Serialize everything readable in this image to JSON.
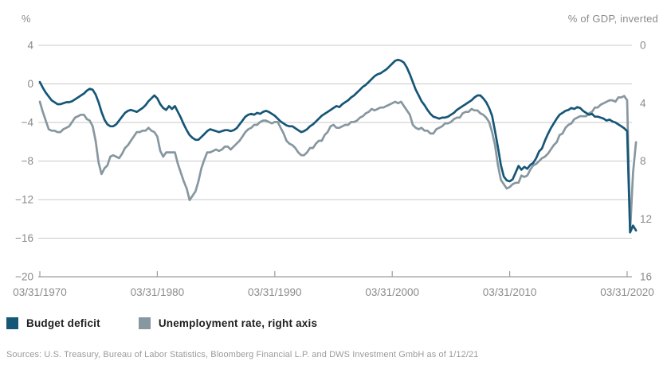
{
  "header": {
    "left_axis_unit": "%",
    "right_axis_unit": "% of GDP, inverted"
  },
  "legend": {
    "items": [
      {
        "label": "Budget deficit",
        "color": "#165677"
      },
      {
        "label": "Unemployment rate, right axis",
        "color": "#8797a0"
      }
    ]
  },
  "footer": {
    "sources": "Sources: U.S. Treasury, Bureau of Labor Statistics, Bloomberg Financial L.P. and DWS Investment GmbH as of 1/12/21"
  },
  "chart_data": {
    "type": "line",
    "title": "",
    "grid": true,
    "x_axis": {
      "frequency": "quarterly",
      "start": "1970-Q1",
      "end": "2020-Q4",
      "tick_labels": [
        "03/31/1970",
        "03/31/1980",
        "03/31/1990",
        "03/31/2000",
        "03/31/2010",
        "03/31/2020"
      ]
    },
    "left_axis": {
      "unit": "%",
      "range": [
        -20,
        4
      ],
      "ticks": [
        {
          "label": "4",
          "value": 4
        },
        {
          "label": "0",
          "value": 0
        },
        {
          "label": "−4",
          "value": -4
        },
        {
          "label": "−8",
          "value": -8
        },
        {
          "label": "−12",
          "value": -12
        },
        {
          "label": "−16",
          "value": -16
        },
        {
          "label": "−20",
          "value": -20
        }
      ]
    },
    "right_axis": {
      "unit": "% of GDP, inverted",
      "inverted": true,
      "range": [
        0,
        16
      ],
      "ticks": [
        {
          "label": "0",
          "value": 0
        },
        {
          "label": "4",
          "value": 4
        },
        {
          "label": "8",
          "value": 8
        },
        {
          "label": "12",
          "value": 12
        },
        {
          "label": "16",
          "value": 16
        }
      ]
    },
    "series": [
      {
        "name": "Budget deficit",
        "axis": "left",
        "color": "#165677",
        "start_year": 1970,
        "frequency": "quarterly",
        "values": [
          0.2,
          -0.4,
          -0.9,
          -1.3,
          -1.7,
          -1.9,
          -2.1,
          -2.1,
          -2.0,
          -1.9,
          -1.9,
          -1.8,
          -1.6,
          -1.4,
          -1.2,
          -1.0,
          -0.7,
          -0.5,
          -0.6,
          -1.1,
          -1.9,
          -2.9,
          -3.7,
          -4.2,
          -4.4,
          -4.4,
          -4.2,
          -3.8,
          -3.4,
          -3.0,
          -2.8,
          -2.7,
          -2.8,
          -2.9,
          -2.7,
          -2.5,
          -2.2,
          -1.8,
          -1.5,
          -1.2,
          -1.5,
          -2.1,
          -2.5,
          -2.7,
          -2.3,
          -2.6,
          -2.3,
          -2.9,
          -3.5,
          -4.2,
          -4.8,
          -5.3,
          -5.6,
          -5.8,
          -5.8,
          -5.5,
          -5.2,
          -4.9,
          -4.7,
          -4.8,
          -4.9,
          -5.0,
          -4.9,
          -4.8,
          -4.8,
          -4.9,
          -4.8,
          -4.6,
          -4.2,
          -3.8,
          -3.4,
          -3.2,
          -3.1,
          -3.2,
          -3.0,
          -3.1,
          -2.9,
          -2.8,
          -2.9,
          -3.1,
          -3.3,
          -3.6,
          -3.9,
          -4.1,
          -4.3,
          -4.4,
          -4.4,
          -4.6,
          -4.8,
          -5.0,
          -4.9,
          -4.7,
          -4.4,
          -4.2,
          -3.9,
          -3.6,
          -3.3,
          -3.1,
          -2.9,
          -2.7,
          -2.5,
          -2.3,
          -2.4,
          -2.1,
          -1.9,
          -1.7,
          -1.4,
          -1.2,
          -0.9,
          -0.6,
          -0.3,
          -0.1,
          0.2,
          0.5,
          0.8,
          1.0,
          1.1,
          1.3,
          1.5,
          1.8,
          2.1,
          2.4,
          2.5,
          2.4,
          2.2,
          1.7,
          1.0,
          0.2,
          -0.6,
          -1.2,
          -1.8,
          -2.2,
          -2.7,
          -3.1,
          -3.4,
          -3.5,
          -3.6,
          -3.5,
          -3.5,
          -3.4,
          -3.2,
          -3.0,
          -2.7,
          -2.5,
          -2.3,
          -2.1,
          -1.9,
          -1.7,
          -1.4,
          -1.2,
          -1.2,
          -1.5,
          -1.9,
          -2.5,
          -3.3,
          -4.9,
          -6.6,
          -8.4,
          -9.6,
          -10.0,
          -10.1,
          -9.9,
          -9.2,
          -8.5,
          -8.9,
          -8.6,
          -8.8,
          -8.4,
          -8.2,
          -7.7,
          -7.0,
          -6.7,
          -5.9,
          -5.2,
          -4.6,
          -4.1,
          -3.6,
          -3.2,
          -3.0,
          -2.8,
          -2.7,
          -2.5,
          -2.6,
          -2.4,
          -2.5,
          -2.8,
          -3.0,
          -3.2,
          -3.1,
          -3.4,
          -3.4,
          -3.5,
          -3.6,
          -3.8,
          -3.7,
          -3.9,
          -4.0,
          -4.2,
          -4.4,
          -4.6,
          -4.9,
          -15.4,
          -14.7,
          -15.2
        ]
      },
      {
        "name": "Unemployment rate, right axis",
        "axis": "right",
        "color": "#8797a0",
        "start_year": 1970,
        "frequency": "quarterly",
        "values": [
          3.9,
          4.6,
          5.2,
          5.8,
          5.9,
          5.9,
          6.0,
          6.0,
          5.8,
          5.7,
          5.6,
          5.3,
          5.0,
          4.9,
          4.8,
          4.8,
          5.1,
          5.2,
          5.6,
          6.6,
          8.1,
          8.9,
          8.5,
          8.3,
          7.7,
          7.6,
          7.7,
          7.8,
          7.5,
          7.1,
          6.9,
          6.6,
          6.3,
          6.0,
          6.0,
          5.9,
          5.9,
          5.7,
          5.9,
          6.0,
          6.3,
          7.3,
          7.7,
          7.4,
          7.4,
          7.4,
          7.4,
          8.2,
          8.8,
          9.4,
          9.9,
          10.7,
          10.4,
          10.1,
          9.4,
          8.5,
          7.9,
          7.4,
          7.4,
          7.3,
          7.2,
          7.3,
          7.2,
          7.0,
          7.0,
          7.2,
          7.0,
          6.8,
          6.6,
          6.3,
          6.0,
          5.8,
          5.7,
          5.5,
          5.5,
          5.3,
          5.2,
          5.2,
          5.3,
          5.4,
          5.3,
          5.3,
          5.7,
          6.1,
          6.6,
          6.8,
          6.9,
          7.1,
          7.4,
          7.6,
          7.6,
          7.4,
          7.1,
          7.1,
          6.8,
          6.6,
          6.6,
          6.2,
          6.0,
          5.6,
          5.5,
          5.7,
          5.7,
          5.6,
          5.5,
          5.5,
          5.3,
          5.3,
          5.2,
          5.0,
          4.9,
          4.7,
          4.6,
          4.4,
          4.5,
          4.4,
          4.3,
          4.3,
          4.2,
          4.1,
          4.0,
          3.9,
          4.0,
          3.9,
          4.2,
          4.5,
          4.8,
          5.5,
          5.7,
          5.8,
          5.7,
          5.9,
          5.9,
          6.1,
          6.1,
          5.8,
          5.7,
          5.6,
          5.4,
          5.4,
          5.3,
          5.1,
          5.0,
          5.0,
          4.7,
          4.6,
          4.6,
          4.4,
          4.5,
          4.5,
          4.7,
          4.8,
          5.0,
          5.3,
          6.0,
          6.9,
          8.3,
          9.3,
          9.6,
          9.9,
          9.8,
          9.6,
          9.5,
          9.5,
          9.0,
          9.1,
          9.0,
          8.6,
          8.3,
          8.2,
          8.0,
          7.8,
          7.7,
          7.5,
          7.2,
          6.9,
          6.7,
          6.2,
          6.1,
          5.7,
          5.5,
          5.4,
          5.1,
          5.0,
          4.9,
          4.9,
          4.9,
          4.7,
          4.6,
          4.3,
          4.3,
          4.1,
          4.0,
          3.9,
          3.8,
          3.8,
          3.9,
          3.6,
          3.6,
          3.5,
          3.8,
          12.9,
          8.8,
          6.7
        ]
      }
    ]
  }
}
